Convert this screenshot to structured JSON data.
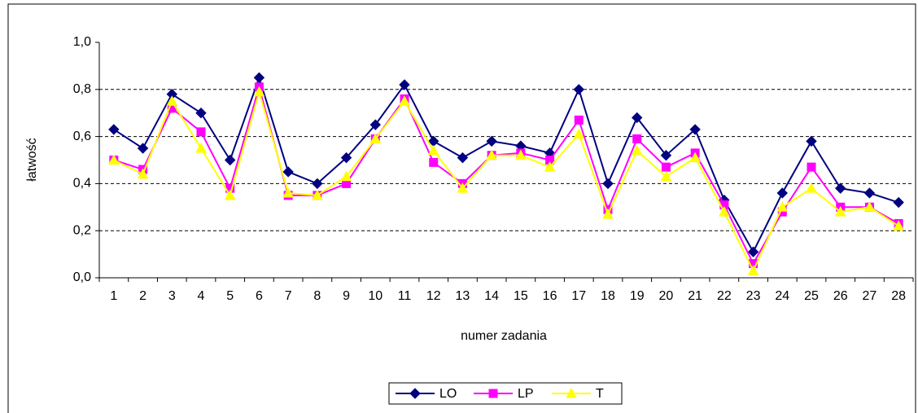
{
  "chart_data": {
    "type": "line",
    "xlabel": "numer zadania",
    "ylabel": "łatwość",
    "categories": [
      "1",
      "2",
      "3",
      "4",
      "5",
      "6",
      "7",
      "8",
      "9",
      "10",
      "11",
      "12",
      "13",
      "14",
      "15",
      "16",
      "17",
      "18",
      "19",
      "20",
      "21",
      "22",
      "23",
      "24",
      "25",
      "26",
      "27",
      "28"
    ],
    "series": [
      {
        "name": "LO",
        "color": "#000080",
        "marker": "diamond",
        "values": [
          0.63,
          0.55,
          0.78,
          0.7,
          0.5,
          0.85,
          0.45,
          0.4,
          0.51,
          0.65,
          0.82,
          0.58,
          0.51,
          0.58,
          0.56,
          0.53,
          0.8,
          0.4,
          0.68,
          0.52,
          0.63,
          0.33,
          0.11,
          0.36,
          0.58,
          0.38,
          0.36,
          0.32
        ]
      },
      {
        "name": "LP",
        "color": "#ff00ff",
        "marker": "square",
        "values": [
          0.5,
          0.46,
          0.72,
          0.62,
          0.38,
          0.81,
          0.35,
          0.35,
          0.4,
          0.59,
          0.76,
          0.49,
          0.4,
          0.52,
          0.53,
          0.5,
          0.67,
          0.29,
          0.59,
          0.47,
          0.53,
          0.31,
          0.06,
          0.28,
          0.47,
          0.3,
          0.3,
          0.23
        ]
      },
      {
        "name": "T",
        "color": "#ffff00",
        "marker": "triangle",
        "values": [
          0.5,
          0.44,
          0.75,
          0.55,
          0.35,
          0.79,
          0.36,
          0.35,
          0.43,
          0.59,
          0.75,
          0.54,
          0.38,
          0.52,
          0.52,
          0.47,
          0.61,
          0.27,
          0.54,
          0.43,
          0.51,
          0.28,
          0.03,
          0.3,
          0.38,
          0.28,
          0.3,
          0.22
        ]
      }
    ],
    "ylim": [
      0,
      1
    ],
    "yticks": [
      {
        "value": 0,
        "label": "0,0"
      },
      {
        "value": 0.2,
        "label": "0,2"
      },
      {
        "value": 0.4,
        "label": "0,4"
      },
      {
        "value": 0.6,
        "label": "0,6"
      },
      {
        "value": 0.8,
        "label": "0,8"
      },
      {
        "value": 1,
        "label": "1,0"
      }
    ],
    "grid": true,
    "legend": "bottom"
  }
}
